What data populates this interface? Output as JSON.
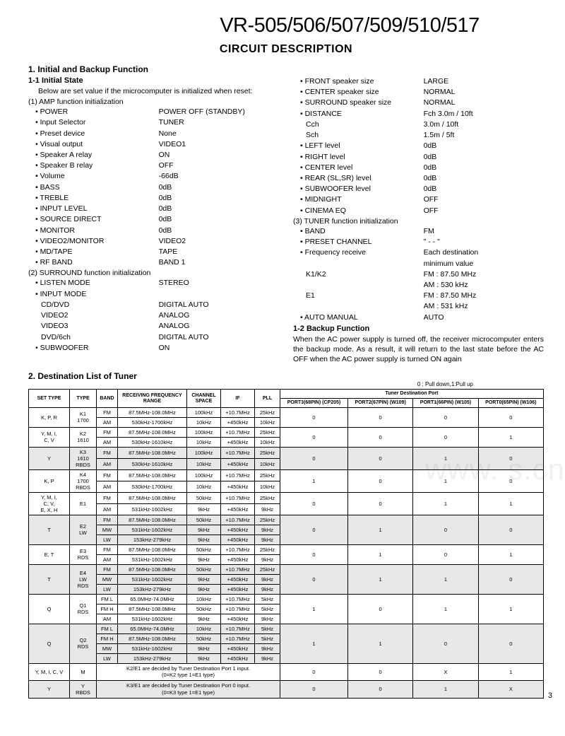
{
  "header": {
    "models": "VR-505/506/507/509/510/517",
    "title": "CIRCUIT DESCRIPTION"
  },
  "sec1": {
    "heading": "1. Initial and Backup Function",
    "sub1": "1-1 Initial State",
    "intro": "Below are set value if the microcomputer is initialized when reset:",
    "g1": "(1) AMP function initialization",
    "amp": [
      {
        "k": "POWER",
        "v": "POWER OFF (STANDBY)"
      },
      {
        "k": "Input Selector",
        "v": "TUNER"
      },
      {
        "k": "Preset device",
        "v": "None"
      },
      {
        "k": "Visual output",
        "v": "VIDEO1"
      },
      {
        "k": "Speaker A relay",
        "v": "ON"
      },
      {
        "k": "Speaker B relay",
        "v": "OFF"
      },
      {
        "k": "Volume",
        "v": "-66dB"
      },
      {
        "k": "BASS",
        "v": "0dB"
      },
      {
        "k": "TREBLE",
        "v": "0dB"
      },
      {
        "k": "INPUT LEVEL",
        "v": "0dB"
      },
      {
        "k": "SOURCE DIRECT",
        "v": "0dB"
      },
      {
        "k": "MONITOR",
        "v": "0dB"
      },
      {
        "k": "VIDEO2/MONITOR",
        "v": "VIDEO2"
      },
      {
        "k": "MD/TAPE",
        "v": "TAPE"
      },
      {
        "k": "RF BAND",
        "v": "BAND 1"
      }
    ],
    "g2": "(2) SURROUND function initialization",
    "surround": [
      {
        "k": "LISTEN MODE",
        "v": "STEREO"
      },
      {
        "k": "INPUT MODE",
        "v": ""
      }
    ],
    "input_modes": [
      {
        "k": "CD/DVD",
        "v": "DIGITAL AUTO"
      },
      {
        "k": "VIDEO2",
        "v": "ANALOG"
      },
      {
        "k": "VIDEO3",
        "v": "ANALOG"
      },
      {
        "k": "DVD/6ch",
        "v": "DIGITAL AUTO"
      }
    ],
    "sub_after": [
      {
        "k": "SUBWOOFER",
        "v": "ON"
      }
    ],
    "col2items": [
      {
        "k": "FRONT speaker size",
        "v": "LARGE",
        "dot": true
      },
      {
        "k": "CENTER speaker size",
        "v": "NORMAL",
        "dot": true
      },
      {
        "k": "SURROUND speaker size",
        "v": "NORMAL",
        "dot": true
      },
      {
        "k": "DISTANCE",
        "v": "Fch 3.0m / 10ft",
        "dot": true
      },
      {
        "k": "Cch",
        "v": "3.0m / 10ft",
        "dot": false,
        "indent": true
      },
      {
        "k": "Sch",
        "v": "1.5m / 5ft",
        "dot": false,
        "indent": true
      },
      {
        "k": "LEFT level",
        "v": "0dB",
        "dot": true
      },
      {
        "k": "RIGHT level",
        "v": "0dB",
        "dot": true
      },
      {
        "k": "CENTER level",
        "v": "0dB",
        "dot": true
      },
      {
        "k": "REAR (SL,SR) level",
        "v": "0dB",
        "dot": true
      },
      {
        "k": "SUBWOOFER level",
        "v": "0dB",
        "dot": true
      },
      {
        "k": "MIDNIGHT",
        "v": "OFF",
        "dot": true
      },
      {
        "k": "CINEMA EQ",
        "v": "OFF",
        "dot": true
      }
    ],
    "g3": "(3) TUNER function initialization",
    "tuner": [
      {
        "k": "BAND",
        "v": "FM",
        "dot": true
      },
      {
        "k": "PRESET CHANNEL",
        "v": "\" - - \"",
        "dot": true
      },
      {
        "k": "Frequency receive",
        "v": "Each destination",
        "dot": true
      },
      {
        "k": "",
        "v": "minimum value",
        "dot": false
      },
      {
        "k": "K1/K2",
        "v": "FM : 87.50 MHz",
        "dot": false,
        "indent": true
      },
      {
        "k": "",
        "v": "AM : 530 kHz",
        "dot": false
      },
      {
        "k": "E1",
        "v": "FM : 87.50 MHz",
        "dot": false,
        "indent": true
      },
      {
        "k": "",
        "v": "AM : 531 kHz",
        "dot": false
      },
      {
        "k": "AUTO MANUAL",
        "v": "AUTO",
        "dot": true
      }
    ],
    "sub2": "1-2 Backup Function",
    "backup_text": "When the AC power supply is turned off, the receiver microcomputer enters the backup mode. As a result, it will return to the last state before the AC OFF when the AC power supply is turned ON again"
  },
  "sec2": {
    "heading": "2. Destination List of Tuner",
    "note": "0 : Pull  down,1:Pull  up",
    "headers": {
      "set": "SET TYPE",
      "type": "TYPE",
      "band": "BAND",
      "rf": "RECEIVING FREQUENCY RANGE",
      "cs": "CHANNEL SPACE",
      "if": "IF",
      "pll": "PLL",
      "tdp": "Tuner Destination Port",
      "p3": "PORT3(68PIN) (CP205)",
      "p2": "PORT2(67PIN) (W109)",
      "p1": "PORT1(66PIN) (W105)",
      "p0": "PORT0(65PIN) (W106)"
    },
    "rows": [
      {
        "set": "K, P, R",
        "type": "K1 1700",
        "bands": [
          {
            "b": "FM",
            "rf": "87.5MHz-108.0MHz",
            "cs": "100kHz",
            "if": "+10.7MHz",
            "pll": "25kHz"
          },
          {
            "b": "AM",
            "rf": "530kHz-1700kHz",
            "cs": "10kHz",
            "if": "+450kHz",
            "pll": "10kHz"
          }
        ],
        "ports": [
          "0",
          "0",
          "0",
          "0"
        ]
      },
      {
        "set": "Y, M, I, C, V",
        "type": "K2 1610",
        "bands": [
          {
            "b": "FM",
            "rf": "87.5MHz-108.0MHz",
            "cs": "100kHz",
            "if": "+10.7MHz",
            "pll": "25kHz"
          },
          {
            "b": "AM",
            "rf": "530kHz-1610kHz",
            "cs": "10kHz",
            "if": "+450kHz",
            "pll": "10kHz"
          }
        ],
        "ports": [
          "0",
          "0",
          "0",
          "1"
        ]
      },
      {
        "set": "Y",
        "type": "K3 1610 RBDS",
        "shade": true,
        "bands": [
          {
            "b": "FM",
            "rf": "87.5MHz-108.0MHz",
            "cs": "100kHz",
            "if": "+10.7MHz",
            "pll": "25kHz"
          },
          {
            "b": "AM",
            "rf": "530kHz-1610kHz",
            "cs": "10kHz",
            "if": "+450kHz",
            "pll": "10kHz"
          }
        ],
        "ports": [
          "0",
          "0",
          "1",
          "0"
        ]
      },
      {
        "set": "K, P",
        "type": "K4 1700 RBDS",
        "bands": [
          {
            "b": "FM",
            "rf": "87.5MHz-108.0MHz",
            "cs": "100kHz",
            "if": "+10.7MHz",
            "pll": "25kHz"
          },
          {
            "b": "AM",
            "rf": "530kHz-1700kHz",
            "cs": "10kHz",
            "if": "+450kHz",
            "pll": "10kHz"
          }
        ],
        "ports": [
          "1",
          "0",
          "1",
          "0"
        ]
      },
      {
        "set": "Y, M, I, C, V, E, X, H",
        "type": "E1",
        "bands": [
          {
            "b": "FM",
            "rf": "87.5MHz-108.0MHz",
            "cs": "50kHz",
            "if": "+10.7MHz",
            "pll": "25kHz"
          },
          {
            "b": "AM",
            "rf": "531kHz-1602kHz",
            "cs": "9kHz",
            "if": "+450kHz",
            "pll": "9kHz"
          }
        ],
        "ports": [
          "0",
          "0",
          "1",
          "1"
        ]
      },
      {
        "set": "T",
        "type": "E2 LW",
        "shade": true,
        "bands": [
          {
            "b": "FM",
            "rf": "87.5MHz-108.0MHz",
            "cs": "50kHz",
            "if": "+10.7MHz",
            "pll": "25kHz"
          },
          {
            "b": "MW",
            "rf": "531kHz-1602kHz",
            "cs": "9kHz",
            "if": "+450kHz",
            "pll": "9kHz"
          },
          {
            "b": "LW",
            "rf": "153kHz-279kHz",
            "cs": "9kHz",
            "if": "+450kHz",
            "pll": "9kHz"
          }
        ],
        "ports": [
          "0",
          "1",
          "0",
          "0"
        ]
      },
      {
        "set": "E, T",
        "type": "E3 RDS",
        "bands": [
          {
            "b": "FM",
            "rf": "87.5MHz-108.0MHz",
            "cs": "50kHz",
            "if": "+10.7MHz",
            "pll": "25kHz"
          },
          {
            "b": "AM",
            "rf": "531kHz-1602kHz",
            "cs": "9kHz",
            "if": "+450kHz",
            "pll": "9kHz"
          }
        ],
        "ports": [
          "0",
          "1",
          "0",
          "1"
        ]
      },
      {
        "set": "T",
        "type": "E4 LW RDS",
        "shade": true,
        "bands": [
          {
            "b": "FM",
            "rf": "87.5MHz-108.0MHz",
            "cs": "50kHz",
            "if": "+10.7MHz",
            "pll": "25kHz"
          },
          {
            "b": "MW",
            "rf": "531kHz-1602kHz",
            "cs": "9kHz",
            "if": "+450kHz",
            "pll": "9kHz"
          },
          {
            "b": "LW",
            "rf": "153kHz-279kHz",
            "cs": "9kHz",
            "if": "+450kHz",
            "pll": "9kHz"
          }
        ],
        "ports": [
          "0",
          "1",
          "1",
          "0"
        ]
      },
      {
        "set": "Q",
        "type": "Q1 RDS",
        "bands": [
          {
            "b": "FM L",
            "rf": "65.0MHz-74.0MHz",
            "cs": "10kHz",
            "if": "+10.7MHz",
            "pll": "5kHz"
          },
          {
            "b": "FM H",
            "rf": "87.5MHz-108.0MHz",
            "cs": "50kHz",
            "if": "+10.7MHz",
            "pll": "5kHz"
          },
          {
            "b": "AM",
            "rf": "531kHz-1602kHz",
            "cs": "9kHz",
            "if": "+450kHz",
            "pll": "9kHz"
          }
        ],
        "ports": [
          "1",
          "0",
          "1",
          "1"
        ]
      },
      {
        "set": "Q",
        "type": "Q2 RDS",
        "shade": true,
        "bands": [
          {
            "b": "FM L",
            "rf": "65.0MHz-74.0MHz",
            "cs": "10kHz",
            "if": "+10.7MHz",
            "pll": "5kHz"
          },
          {
            "b": "FM H",
            "rf": "87.5MHz-108.0MHz",
            "cs": "50kHz",
            "if": "+10.7MHz",
            "pll": "5kHz"
          },
          {
            "b": "MW",
            "rf": "531kHz-1602kHz",
            "cs": "9kHz",
            "if": "+450kHz",
            "pll": "9kHz"
          },
          {
            "b": "LW",
            "rf": "153kHz-279kHz",
            "cs": "9kHz",
            "if": "+450kHz",
            "pll": "9kHz"
          }
        ],
        "ports": [
          "1",
          "1",
          "0",
          "0"
        ]
      },
      {
        "set": "Y, M, I, C, V",
        "type": "M",
        "note": "K2/E1 are decided by Tuner Destination Port 1 input. (0=K2 type 1=E1 type)",
        "ports": [
          "0",
          "0",
          "X",
          "1"
        ]
      },
      {
        "set": "Y",
        "type": "Y RBDS",
        "shade": true,
        "note": "K3/E1 are decided by Tuner Destination Port 0 input. (0=K3 type 1=E1 type)",
        "ports": [
          "0",
          "0",
          "1",
          "X"
        ]
      }
    ]
  },
  "page": "3",
  "watermark": "www.               s.cn"
}
